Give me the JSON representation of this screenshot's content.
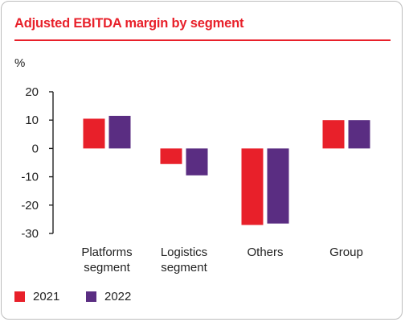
{
  "title": "Adjusted EBITDA margin by segment",
  "chart_data": {
    "type": "bar",
    "title": "Adjusted EBITDA margin by segment",
    "ylabel": "%",
    "xlabel": "",
    "ylim": [
      -30,
      20
    ],
    "yticks": [
      20,
      10,
      0,
      -10,
      -20,
      -30
    ],
    "categories": [
      [
        "Platforms",
        "segment"
      ],
      [
        "Logistics",
        "segment"
      ],
      [
        "Others"
      ],
      [
        "Group"
      ]
    ],
    "series": [
      {
        "name": "2021",
        "color": "#e8202a",
        "values": [
          10.5,
          -5.5,
          -27.0,
          10.0
        ]
      },
      {
        "name": "2022",
        "color": "#5a2d82",
        "values": [
          11.5,
          -9.5,
          -26.5,
          10.0
        ]
      }
    ],
    "grid": false,
    "legend_position": "bottom-left"
  }
}
